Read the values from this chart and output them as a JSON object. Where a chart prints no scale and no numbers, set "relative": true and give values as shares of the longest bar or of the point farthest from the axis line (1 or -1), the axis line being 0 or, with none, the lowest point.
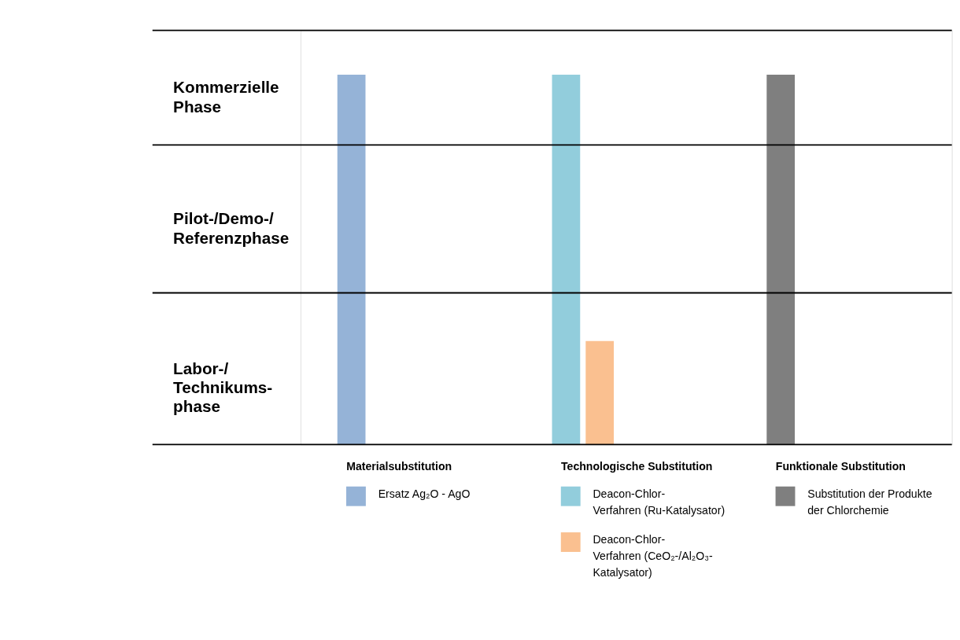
{
  "chart_data": {
    "type": "bar",
    "relative": true,
    "categories": [
      "Materialsubstitution",
      "Technologische Substitution",
      "Funktionale Substitution"
    ],
    "series": [
      {
        "name": "Ersatz Ag₂O - AgO",
        "color": "#95b3d7",
        "values": [
          1,
          null,
          null
        ]
      },
      {
        "name": "Deacon-Chlor-\nVerfahren (Ru-Katalysator)",
        "color": "#92cddc",
        "values": [
          null,
          1,
          null
        ]
      },
      {
        "name": "Deacon-Chlor-\nVerfahren (CeO₂-/Al₂O₃-\nKatalysator)",
        "color": "#fac090",
        "values": [
          null,
          0.28,
          null
        ]
      },
      {
        "name": "Substitution der Produkte\nder Chlorchemie",
        "color": "#7f7f7f",
        "values": [
          null,
          null,
          1
        ]
      }
    ],
    "ref_lines": [
      {
        "axis": "y",
        "value": 0.41,
        "color": "#000000"
      },
      {
        "axis": "y",
        "value": 0.81,
        "color": "#000000"
      },
      {
        "axis": "y",
        "value": 1.12,
        "color": "#000000"
      }
    ],
    "annotations": [
      "Labor-/\nTechnikums-\nphase",
      "Pilot-/Demo-/\nReferenzphase",
      "Kommerzielle\nPhase"
    ],
    "legend": "bottom"
  }
}
